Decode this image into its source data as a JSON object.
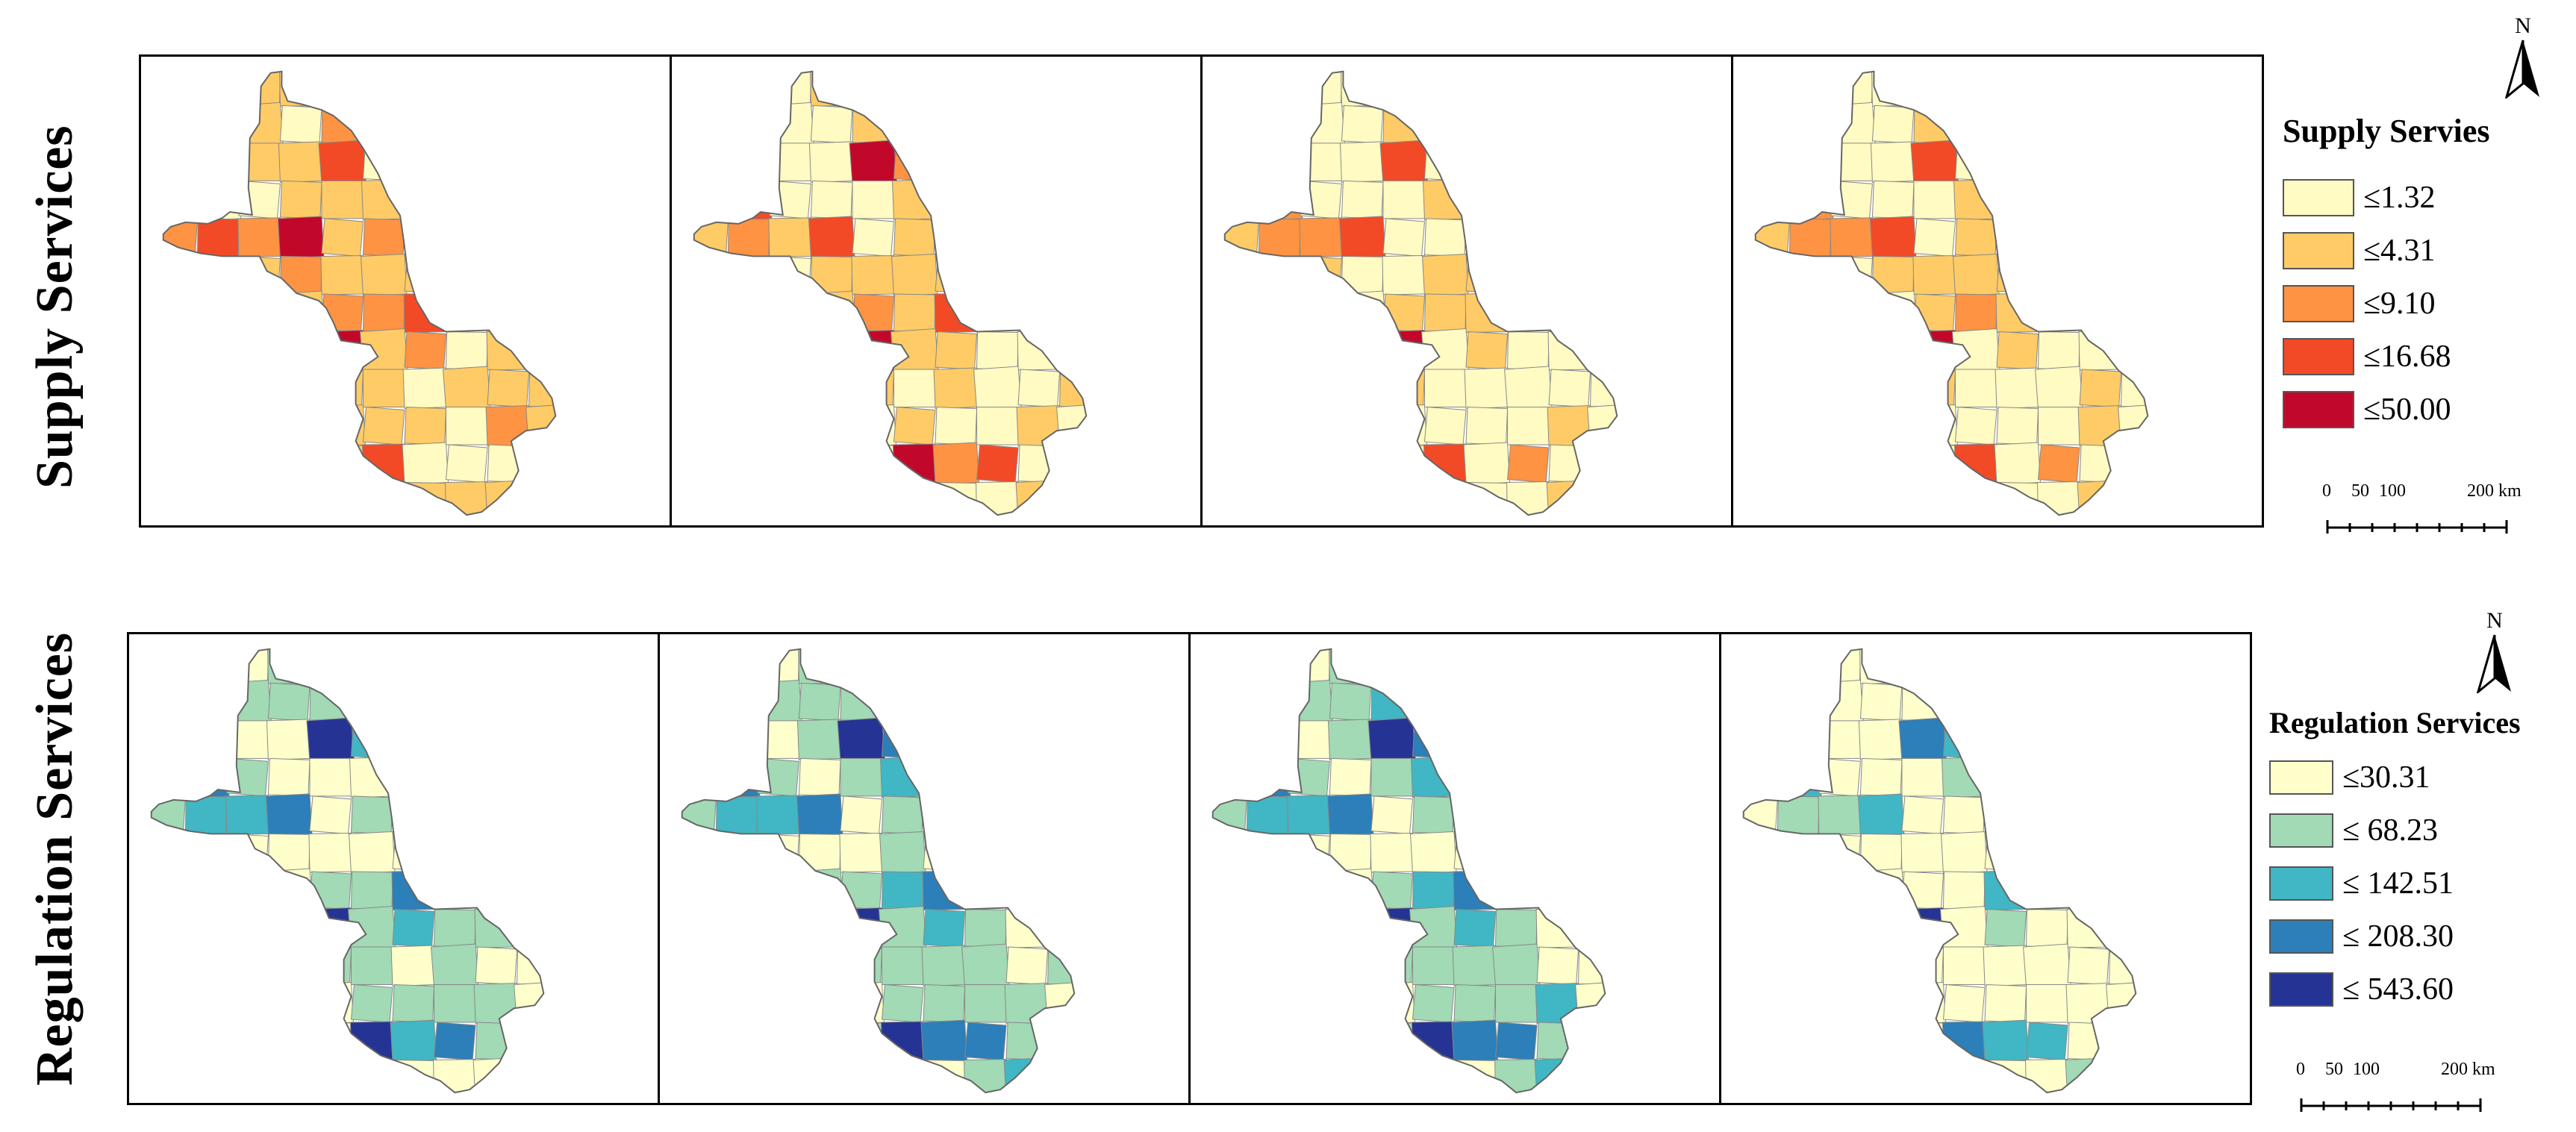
{
  "rows": [
    {
      "label": "Supply  Services",
      "legend": {
        "title": "Supply Servies",
        "classes": [
          {
            "label": "≤1.32",
            "color": "#FFFBC2"
          },
          {
            "label": "≤4.31",
            "color": "#FECB66"
          },
          {
            "label": "≤9.10",
            "color": "#FD9343"
          },
          {
            "label": "≤16.68",
            "color": "#F24A26"
          },
          {
            "label": "≤50.00",
            "color": "#C2082A"
          }
        ]
      },
      "maps": [
        {
          "classes": [
            1,
            1,
            1,
            0,
            2,
            1,
            1,
            3,
            0,
            0,
            0,
            1,
            1,
            1,
            2,
            3,
            2,
            4,
            1,
            2,
            1,
            2,
            1,
            1,
            1,
            1,
            2,
            2,
            3,
            4,
            1,
            2,
            0,
            1,
            1,
            1,
            0,
            1,
            1,
            1
          ]
        },
        {
          "classes": [
            0,
            1,
            0,
            0,
            1,
            0,
            0,
            4,
            2,
            3,
            0,
            0,
            0,
            1,
            1,
            2,
            1,
            3,
            0,
            1,
            0,
            1,
            1,
            1,
            1,
            1,
            2,
            1,
            3,
            4,
            1,
            1,
            0,
            0,
            1,
            0,
            1,
            0,
            0,
            1
          ]
        },
        {
          "classes": [
            0,
            0,
            0,
            0,
            1,
            0,
            0,
            3,
            0,
            2,
            0,
            0,
            0,
            1,
            1,
            2,
            2,
            3,
            0,
            0,
            1,
            0,
            0,
            1,
            1,
            0,
            1,
            1,
            1,
            4,
            0,
            1,
            0,
            0,
            1,
            0,
            0,
            0,
            0,
            0
          ]
        },
        {
          "classes": [
            0,
            0,
            0,
            0,
            1,
            0,
            0,
            3,
            0,
            2,
            0,
            0,
            0,
            1,
            1,
            2,
            2,
            3,
            0,
            1,
            0,
            1,
            1,
            1,
            1,
            0,
            1,
            2,
            1,
            4,
            0,
            1,
            0,
            0,
            1,
            0,
            0,
            0,
            1,
            0
          ]
        }
      ]
    },
    {
      "label": "Regulation Services",
      "legend": {
        "title": "Regulation Services",
        "classes": [
          {
            "label": "≤30.31",
            "color": "#FFFFCC"
          },
          {
            "label": "≤ 68.23",
            "color": "#A1DAB4"
          },
          {
            "label": "≤ 142.51",
            "color": "#41B6C4"
          },
          {
            "label": "≤ 208.30",
            "color": "#2C7FB8"
          },
          {
            "label": "≤ 543.60",
            "color": "#253494"
          }
        ]
      },
      "maps": [
        {
          "classes": [
            0,
            1,
            1,
            1,
            1,
            0,
            0,
            4,
            2,
            3,
            1,
            0,
            0,
            0,
            1,
            2,
            2,
            3,
            0,
            1,
            0,
            0,
            0,
            0,
            0,
            0,
            1,
            1,
            3,
            4,
            1,
            2,
            1,
            1,
            1,
            1,
            0,
            1,
            0,
            0
          ]
        },
        {
          "classes": [
            0,
            1,
            1,
            1,
            1,
            0,
            1,
            4,
            3,
            3,
            1,
            0,
            1,
            2,
            1,
            2,
            2,
            3,
            0,
            1,
            0,
            0,
            0,
            1,
            0,
            1,
            1,
            2,
            3,
            4,
            1,
            2,
            1,
            0,
            1,
            1,
            1,
            1,
            0,
            1
          ]
        },
        {
          "classes": [
            0,
            1,
            1,
            1,
            2,
            0,
            1,
            4,
            3,
            3,
            1,
            0,
            1,
            2,
            1,
            2,
            2,
            3,
            0,
            1,
            0,
            0,
            0,
            0,
            0,
            0,
            1,
            2,
            3,
            4,
            1,
            2,
            1,
            0,
            1,
            1,
            1,
            1,
            0,
            0
          ]
        },
        {
          "classes": [
            0,
            0,
            0,
            0,
            0,
            0,
            0,
            3,
            2,
            2,
            0,
            0,
            0,
            1,
            0,
            1,
            1,
            2,
            0,
            0,
            0,
            0,
            0,
            0,
            0,
            0,
            0,
            0,
            2,
            4,
            0,
            1,
            0,
            0,
            0,
            0,
            0,
            0,
            0,
            0
          ]
        }
      ]
    }
  ],
  "scalebar": {
    "labels": [
      "0",
      "50",
      "100",
      "200 km"
    ]
  },
  "north_label": "N"
}
